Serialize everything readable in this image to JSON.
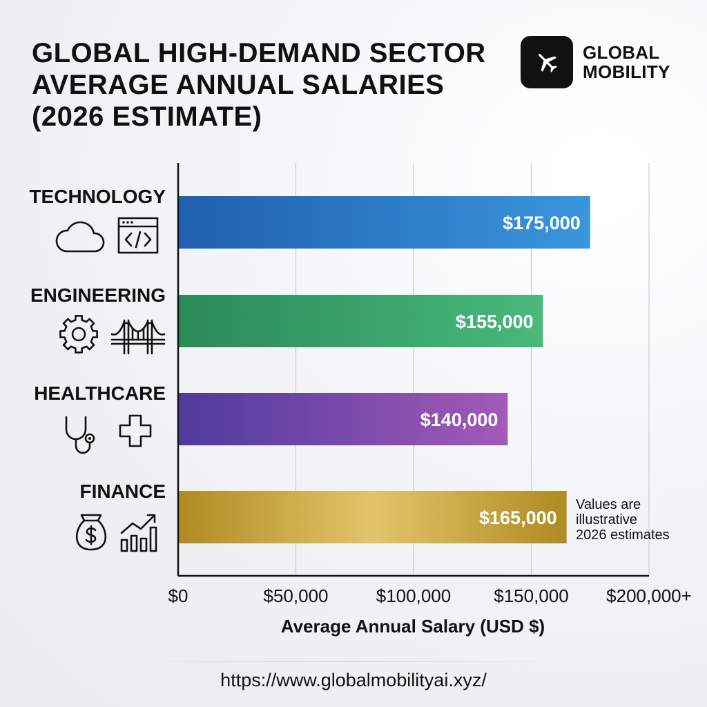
{
  "header": {
    "title_lines": [
      "GLOBAL HIGH-DEMAND SECTOR",
      "AVERAGE ANNUAL SALARIES",
      "(2026 ESTIMATE)"
    ],
    "brand_lines": [
      "GLOBAL",
      "MOBILITY"
    ],
    "brand_icon": "airplane-icon"
  },
  "chart_data": {
    "type": "bar",
    "orientation": "horizontal",
    "categories": [
      "TECHNOLOGY",
      "ENGINEERING",
      "HEALTHCARE",
      "FINANCE"
    ],
    "values": [
      175000,
      155000,
      140000,
      165000
    ],
    "value_labels": [
      "$175,000",
      "$155,000",
      "$140,000",
      "$165,000"
    ],
    "category_icons": [
      [
        "cloud-icon",
        "code-window-icon"
      ],
      [
        "gear-icon",
        "bridge-icon"
      ],
      [
        "stethoscope-icon",
        "medical-cross-icon"
      ],
      [
        "money-bag-icon",
        "growth-chart-icon"
      ]
    ],
    "bar_colors": [
      [
        "#1f5fae",
        "#3a96dd"
      ],
      [
        "#2a8a58",
        "#49b97c"
      ],
      [
        "#4f3a9c",
        "#a35ab8"
      ],
      [
        "#b08a22",
        "#e2c56a",
        "#b08a22"
      ]
    ],
    "xlabel": "Average Annual Salary (USD $)",
    "xlim": [
      0,
      200000
    ],
    "xticks": [
      0,
      50000,
      100000,
      150000,
      200000
    ],
    "xtick_labels": [
      "$0",
      "$50,000",
      "$100,000",
      "$150,000",
      "$200,000+"
    ],
    "grid": true,
    "annotation_lines": [
      "Values are",
      "illustrative",
      "2026 estimates"
    ]
  },
  "footer": {
    "url": "https://www.globalmobilityai.xyz/"
  }
}
